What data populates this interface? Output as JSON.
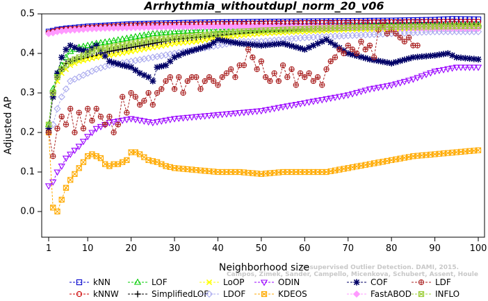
{
  "chart_data": {
    "type": "line",
    "title": "Arrhythmia_withoutdupl_norm_20_v06",
    "xlabel": "Neighborhood size",
    "ylabel": "Adjusted AP",
    "xlim": [
      1,
      100
    ],
    "ylim": [
      -0.03,
      0.5
    ],
    "xticks": [
      1,
      10,
      20,
      30,
      40,
      50,
      60,
      70,
      80,
      90,
      100
    ],
    "yticks": [
      0.0,
      0.1,
      0.2,
      0.3,
      0.4,
      0.5
    ],
    "grid": false,
    "legend_position": "bottom",
    "watermark": [
      "Campos, Zimek, Sander, Campello, Micenkova, Schubert, Assent, Houle",
      "Unsupervised Outlier Detection. DAMI, 2015."
    ],
    "series": [
      {
        "name": "kNN",
        "color": "#0000cc",
        "marker": "square",
        "line": "dash",
        "x": [
          1,
          2,
          3,
          5,
          8,
          10,
          15,
          20,
          30,
          40,
          50,
          60,
          70,
          80,
          90,
          94,
          100
        ],
        "y": [
          0.455,
          0.457,
          0.46,
          0.463,
          0.466,
          0.468,
          0.471,
          0.474,
          0.477,
          0.479,
          0.48,
          0.481,
          0.482,
          0.483,
          0.485,
          0.487,
          0.486
        ]
      },
      {
        "name": "kNNW",
        "color": "#cc0000",
        "marker": "circle",
        "line": "dash",
        "x": [
          1,
          2,
          3,
          5,
          8,
          10,
          15,
          20,
          30,
          40,
          50,
          60,
          70,
          80,
          90,
          100
        ],
        "y": [
          0.452,
          0.455,
          0.458,
          0.461,
          0.463,
          0.465,
          0.468,
          0.471,
          0.473,
          0.475,
          0.476,
          0.477,
          0.478,
          0.479,
          0.48,
          0.48
        ]
      },
      {
        "name": "LOF",
        "color": "#00cc00",
        "marker": "triangle-up",
        "line": "dash",
        "x": [
          1,
          2,
          3,
          4,
          5,
          6,
          8,
          10,
          12,
          15,
          20,
          25,
          30,
          35,
          40,
          45,
          50,
          60,
          70,
          80,
          90,
          100
        ],
        "y": [
          0.22,
          0.31,
          0.35,
          0.37,
          0.39,
          0.405,
          0.415,
          0.42,
          0.425,
          0.43,
          0.44,
          0.45,
          0.455,
          0.458,
          0.46,
          0.462,
          0.463,
          0.466,
          0.468,
          0.47,
          0.471,
          0.472
        ]
      },
      {
        "name": "SimplifiedLOF",
        "color": "#000000",
        "marker": "plus",
        "line": "dash",
        "x": [
          1,
          2,
          3,
          4,
          5,
          6,
          8,
          10,
          12,
          15,
          20,
          25,
          30,
          35,
          40,
          45,
          50,
          60,
          70,
          80,
          90,
          100
        ],
        "y": [
          0.2,
          0.3,
          0.34,
          0.36,
          0.375,
          0.38,
          0.385,
          0.39,
          0.395,
          0.405,
          0.415,
          0.425,
          0.435,
          0.44,
          0.445,
          0.45,
          0.455,
          0.46,
          0.465,
          0.468,
          0.47,
          0.47
        ]
      },
      {
        "name": "LoOP",
        "color": "#ffff00",
        "marker": "cross",
        "line": "dash",
        "x": [
          1,
          2,
          3,
          4,
          5,
          6,
          8,
          10,
          12,
          15,
          20,
          25,
          30,
          35,
          40,
          50,
          60,
          70,
          80,
          90,
          100
        ],
        "y": [
          0.21,
          0.29,
          0.33,
          0.35,
          0.36,
          0.37,
          0.38,
          0.385,
          0.39,
          0.395,
          0.405,
          0.415,
          0.425,
          0.43,
          0.44,
          0.45,
          0.455,
          0.46,
          0.462,
          0.465,
          0.467
        ]
      },
      {
        "name": "LDOF",
        "color": "#aaaaee",
        "marker": "diamond",
        "line": "dash",
        "x": [
          1,
          2,
          3,
          4,
          5,
          6,
          8,
          10,
          12,
          15,
          20,
          25,
          30,
          35,
          40,
          45,
          50,
          60,
          70,
          80,
          90,
          100
        ],
        "y": [
          0.2,
          0.22,
          0.26,
          0.29,
          0.31,
          0.33,
          0.34,
          0.35,
          0.36,
          0.37,
          0.38,
          0.39,
          0.4,
          0.41,
          0.42,
          0.43,
          0.43,
          0.44,
          0.445,
          0.45,
          0.455,
          0.455
        ]
      },
      {
        "name": "ODIN",
        "color": "#9900ff",
        "marker": "triangle-down",
        "line": "dash",
        "x": [
          1,
          2,
          3,
          4,
          5,
          6,
          7,
          8,
          10,
          12,
          15,
          20,
          25,
          30,
          35,
          40,
          45,
          50,
          55,
          60,
          65,
          70,
          75,
          80,
          85,
          90,
          95,
          100
        ],
        "y": [
          0.065,
          0.075,
          0.1,
          0.115,
          0.135,
          0.145,
          0.155,
          0.165,
          0.19,
          0.21,
          0.225,
          0.235,
          0.225,
          0.235,
          0.24,
          0.245,
          0.25,
          0.255,
          0.265,
          0.275,
          0.285,
          0.295,
          0.31,
          0.32,
          0.335,
          0.355,
          0.365,
          0.365
        ]
      },
      {
        "name": "KDEOS",
        "color": "#ffaa00",
        "marker": "square-x",
        "line": "dash",
        "x": [
          1,
          2,
          3,
          4,
          5,
          6,
          7,
          8,
          9,
          10,
          11,
          12,
          13,
          14,
          15,
          16,
          17,
          18,
          19,
          20,
          21,
          22,
          24,
          26,
          28,
          30,
          35,
          40,
          45,
          50,
          55,
          60,
          65,
          70,
          75,
          80,
          85,
          90,
          95,
          100
        ],
        "y": [
          0.2,
          0.01,
          0.0,
          0.03,
          0.06,
          0.08,
          0.095,
          0.11,
          0.125,
          0.14,
          0.145,
          0.14,
          0.135,
          0.12,
          0.115,
          0.12,
          0.12,
          0.125,
          0.13,
          0.15,
          0.15,
          0.145,
          0.13,
          0.125,
          0.115,
          0.11,
          0.105,
          0.1,
          0.1,
          0.095,
          0.1,
          0.1,
          0.1,
          0.11,
          0.12,
          0.13,
          0.14,
          0.145,
          0.15,
          0.155
        ]
      },
      {
        "name": "COF",
        "color": "#000066",
        "marker": "asterisk",
        "line": "dash",
        "x": [
          1,
          2,
          3,
          4,
          5,
          6,
          7,
          8,
          10,
          12,
          15,
          18,
          20,
          22,
          24,
          25,
          26,
          28,
          30,
          32,
          35,
          38,
          40,
          45,
          50,
          55,
          60,
          65,
          70,
          75,
          80,
          85,
          90,
          93,
          95,
          100
        ],
        "y": [
          0.21,
          0.29,
          0.35,
          0.39,
          0.41,
          0.42,
          0.415,
          0.41,
          0.405,
          0.42,
          0.38,
          0.37,
          0.365,
          0.35,
          0.34,
          0.33,
          0.365,
          0.37,
          0.39,
          0.4,
          0.41,
          0.42,
          0.435,
          0.425,
          0.42,
          0.425,
          0.41,
          0.435,
          0.4,
          0.385,
          0.375,
          0.39,
          0.395,
          0.4,
          0.39,
          0.385
        ]
      },
      {
        "name": "FastABOD",
        "color": "#ff99ff",
        "marker": "diamond-filled",
        "line": "dash",
        "x": [
          1,
          2,
          3,
          5,
          8,
          10,
          15,
          20,
          30,
          40,
          50,
          60,
          70,
          80,
          90,
          100
        ],
        "y": [
          0.45,
          0.452,
          0.455,
          0.458,
          0.46,
          0.462,
          0.464,
          0.465,
          0.467,
          0.468,
          0.468,
          0.467,
          0.466,
          0.465,
          0.464,
          0.463
        ]
      },
      {
        "name": "LDF",
        "color": "#aa2222",
        "marker": "circle-plus",
        "line": "dash",
        "x": [
          1,
          2,
          3,
          4,
          5,
          6,
          7,
          8,
          9,
          10,
          11,
          12,
          13,
          14,
          15,
          16,
          17,
          18,
          19,
          20,
          21,
          22,
          23,
          24,
          25,
          26,
          27,
          28,
          29,
          30,
          31,
          32,
          33,
          34,
          35,
          36,
          37,
          38,
          39,
          40,
          41,
          42,
          43,
          44,
          45,
          46,
          47,
          48,
          49,
          50,
          51,
          52,
          53,
          54,
          55,
          56,
          57,
          58,
          59,
          60,
          61,
          62,
          63,
          64,
          65,
          66,
          67,
          68,
          69,
          70,
          71,
          72,
          73,
          74,
          75,
          76,
          77,
          78,
          79,
          80,
          81,
          82,
          83,
          84,
          85,
          86
        ],
        "y": [
          0.2,
          0.14,
          0.21,
          0.24,
          0.22,
          0.26,
          0.2,
          0.25,
          0.21,
          0.26,
          0.23,
          0.26,
          0.24,
          0.22,
          0.24,
          0.2,
          0.22,
          0.29,
          0.25,
          0.3,
          0.29,
          0.27,
          0.28,
          0.3,
          0.27,
          0.3,
          0.31,
          0.33,
          0.34,
          0.31,
          0.34,
          0.3,
          0.33,
          0.34,
          0.34,
          0.31,
          0.33,
          0.34,
          0.33,
          0.32,
          0.34,
          0.35,
          0.36,
          0.34,
          0.37,
          0.37,
          0.41,
          0.39,
          0.36,
          0.38,
          0.34,
          0.33,
          0.35,
          0.33,
          0.37,
          0.34,
          0.36,
          0.32,
          0.35,
          0.34,
          0.35,
          0.33,
          0.34,
          0.32,
          0.36,
          0.38,
          0.39,
          0.41,
          0.4,
          0.42,
          0.41,
          0.4,
          0.43,
          0.41,
          0.42,
          0.39,
          0.46,
          0.47,
          0.45,
          0.46,
          0.45,
          0.44,
          0.43,
          0.44,
          0.42,
          0.42
        ]
      },
      {
        "name": "INFLO",
        "color": "#99cc33",
        "marker": "square-x",
        "line": "dash",
        "x": [
          1,
          2,
          3,
          4,
          5,
          6,
          8,
          10,
          12,
          15,
          20,
          25,
          30,
          35,
          40,
          45,
          50,
          60,
          70,
          80,
          90,
          100
        ],
        "y": [
          0.22,
          0.3,
          0.34,
          0.36,
          0.37,
          0.38,
          0.39,
          0.4,
          0.41,
          0.415,
          0.425,
          0.435,
          0.44,
          0.445,
          0.45,
          0.455,
          0.458,
          0.462,
          0.465,
          0.467,
          0.468,
          0.469
        ]
      }
    ]
  }
}
